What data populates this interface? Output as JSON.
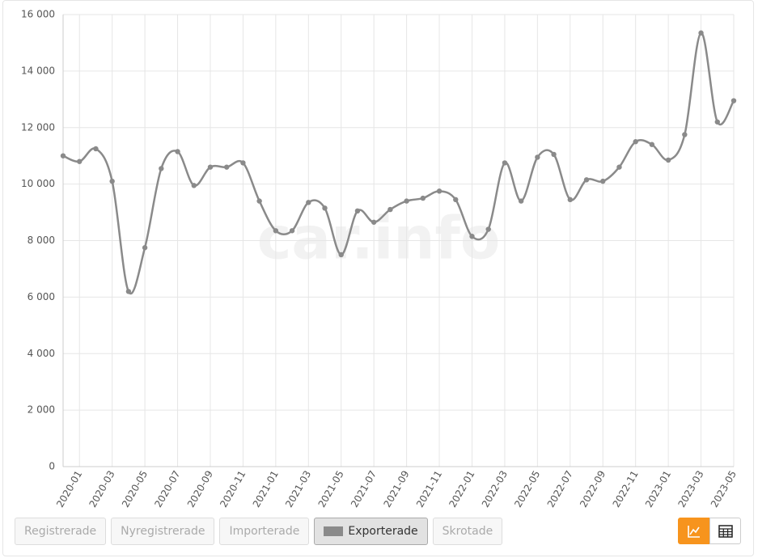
{
  "chart_data": {
    "type": "line",
    "watermark": "car.info",
    "categories": [
      null,
      "2020-01",
      null,
      "2020-03",
      null,
      "2020-05",
      null,
      "2020-07",
      null,
      "2020-09",
      null,
      "2020-11",
      null,
      "2021-01",
      null,
      "2021-03",
      null,
      "2021-05",
      null,
      "2021-07",
      null,
      "2021-09",
      null,
      "2021-11",
      null,
      "2022-01",
      null,
      "2022-03",
      null,
      "2022-05",
      null,
      "2022-07",
      null,
      "2022-09",
      null,
      "2022-11",
      null,
      "2023-01",
      null,
      "2023-03",
      null,
      "2023-05"
    ],
    "series": [
      {
        "color": "#8a8a8a",
        "values": [
          11000,
          10800,
          11250,
          10100,
          6200,
          7750,
          10550,
          11150,
          9950,
          10600,
          10600,
          10750,
          9400,
          8350,
          8350,
          9350,
          9150,
          7500,
          9050,
          8650,
          9100,
          9400,
          9500,
          9750,
          9450,
          8150,
          8400,
          10750,
          9400,
          10950,
          11050,
          9450,
          10150,
          10100,
          10600,
          11500,
          11400,
          10850,
          11750,
          15350,
          12200,
          12950
        ]
      }
    ],
    "ylim": [
      0,
      16000
    ],
    "yticks": [
      0,
      {
        "value": 2000,
        "label": "2 000"
      },
      {
        "value": 4000,
        "label": "4 000"
      },
      {
        "value": 6000,
        "label": "6 000"
      },
      {
        "value": 8000,
        "label": "8 000"
      },
      {
        "value": 10000,
        "label": "10 000"
      },
      {
        "value": 12000,
        "label": "12 000"
      },
      {
        "value": 14000,
        "label": "14 000"
      },
      {
        "value": 16000,
        "label": "16 000"
      }
    ],
    "grid": true,
    "toggles": [
      "Registrerade",
      "Nyregistrerade",
      "Importerade",
      "Exporterade",
      "Skrotade"
    ],
    "active_toggle": 3
  }
}
